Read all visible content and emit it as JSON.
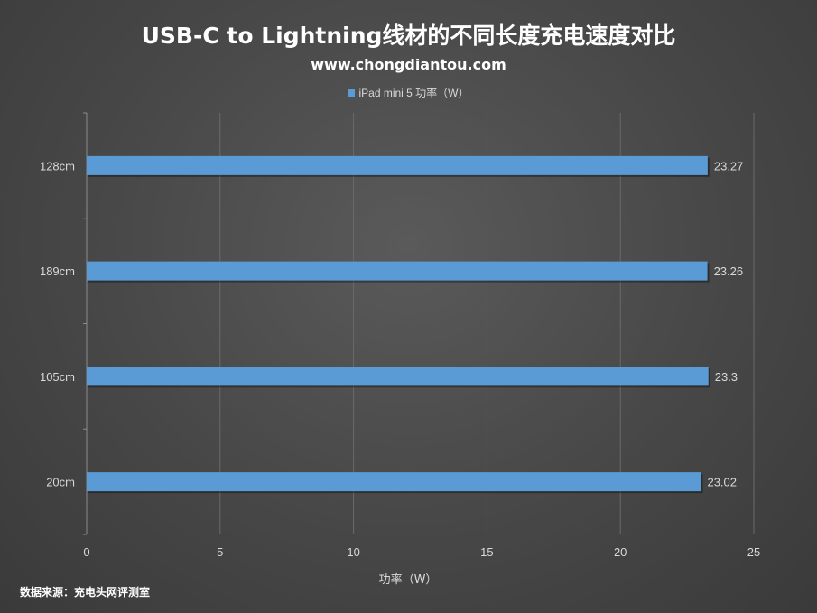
{
  "title": "USB-C to Lightning线材的不同长度充电速度对比",
  "subtitle": "www.chongdiantou.com",
  "source": "数据来源：充电头网评测室",
  "colors": {
    "bar": "#5b9bd5",
    "grid": "#6a6a6a",
    "axis": "#8c8c8c"
  },
  "chart_data": {
    "type": "bar",
    "orientation": "horizontal",
    "categories": [
      "128cm",
      "189cm",
      "105cm",
      "20cm"
    ],
    "series": [
      {
        "name": "iPad mini 5 功率（W）",
        "values": [
          23.27,
          23.26,
          23.3,
          23.02
        ]
      }
    ],
    "value_labels": [
      "23.27",
      "23.26",
      "23.3",
      "23.02"
    ],
    "xlabel": "功率（W）",
    "ylabel": "",
    "xlim": [
      0,
      25
    ],
    "xticks": [
      "0",
      "5",
      "10",
      "15",
      "20",
      "25"
    ],
    "grid": true,
    "legend_position": "top"
  }
}
